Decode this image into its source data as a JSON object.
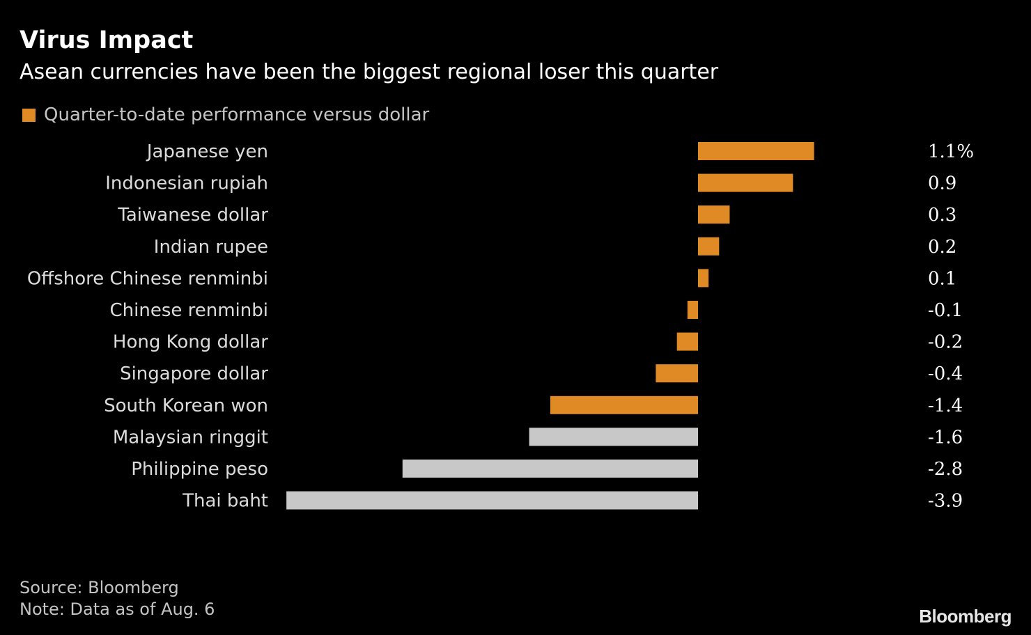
{
  "header": {
    "title": "Virus Impact",
    "subtitle": "Asean currencies have been the biggest regional loser this quarter"
  },
  "legend": {
    "label": "Quarter-to-date performance versus dollar"
  },
  "footer": {
    "source": "Source: Bloomberg",
    "note": "Note: Data as of Aug. 6",
    "brand": "Bloomberg"
  },
  "colors": {
    "highlight": "#e08a25",
    "muted": "#c8c8c8"
  },
  "chart_data": {
    "type": "bar",
    "orientation": "horizontal",
    "title": "Virus Impact",
    "subtitle": "Asean currencies have been the biggest regional loser this quarter",
    "xlabel": "",
    "ylabel": "",
    "unit": "%",
    "series": [
      {
        "name": "Quarter-to-date performance versus dollar",
        "values": [
          1.1,
          0.9,
          0.3,
          0.2,
          0.1,
          -0.1,
          -0.2,
          -0.4,
          -1.4,
          -1.6,
          -2.8,
          -3.9
        ]
      }
    ],
    "categories": [
      "Japanese yen",
      "Indonesian rupiah",
      "Taiwanese dollar",
      "Indian rupee",
      "Offshore Chinese renminbi",
      "Chinese renminbi",
      "Hong Kong dollar",
      "Singapore dollar",
      "South Korean won",
      "Malaysian ringgit",
      "Philippine peso",
      "Thai baht"
    ],
    "values": [
      1.1,
      0.9,
      0.3,
      0.2,
      0.1,
      -0.1,
      -0.2,
      -0.4,
      -1.4,
      -1.6,
      -2.8,
      -3.9
    ],
    "value_labels": [
      "1.1%",
      "0.9",
      "0.3",
      "0.2",
      "0.1",
      "-0.1",
      "-0.2",
      "-0.4",
      "-1.4",
      "-1.6",
      "-2.8",
      "-3.9"
    ],
    "highlighted": [
      true,
      true,
      true,
      true,
      true,
      true,
      true,
      true,
      true,
      false,
      false,
      false
    ],
    "xlim": [
      -3.9,
      1.1
    ],
    "grid": false,
    "legend_position": "top-left"
  }
}
